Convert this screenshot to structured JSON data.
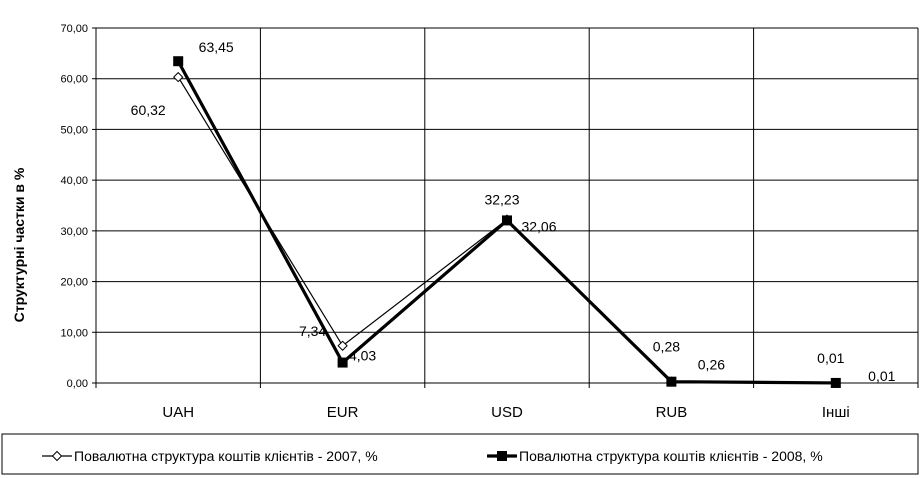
{
  "chart_data": {
    "type": "line",
    "categories": [
      "UAH",
      "EUR",
      "USD",
      "RUB",
      "Інші"
    ],
    "series": [
      {
        "name": "Повалютна структура коштів клієнтів - 2007, %",
        "values": [
          60.32,
          7.34,
          32.23,
          0.28,
          0.01
        ],
        "labels": [
          "60,32",
          "7,34",
          "32,23",
          "0,28",
          "0,01"
        ],
        "marker": "open-diamond",
        "color": "#000000"
      },
      {
        "name": "Повалютна структура коштів клієнтів - 2008, %",
        "values": [
          63.45,
          4.03,
          32.06,
          0.26,
          0.01
        ],
        "labels": [
          "63,45",
          "4,03",
          "32,06",
          "0,26",
          "0,01"
        ],
        "marker": "filled-square",
        "color": "#000000"
      }
    ],
    "title": "",
    "xlabel": "",
    "ylabel": "Структурні частки в %",
    "ylim": [
      0,
      70
    ],
    "yticks": [
      0,
      10,
      20,
      30,
      40,
      50,
      60,
      70
    ],
    "ytick_labels": [
      "0,00",
      "10,00",
      "20,00",
      "30,00",
      "40,00",
      "50,00",
      "60,00",
      "70,00"
    ],
    "grid": true,
    "legend": "bottom"
  }
}
